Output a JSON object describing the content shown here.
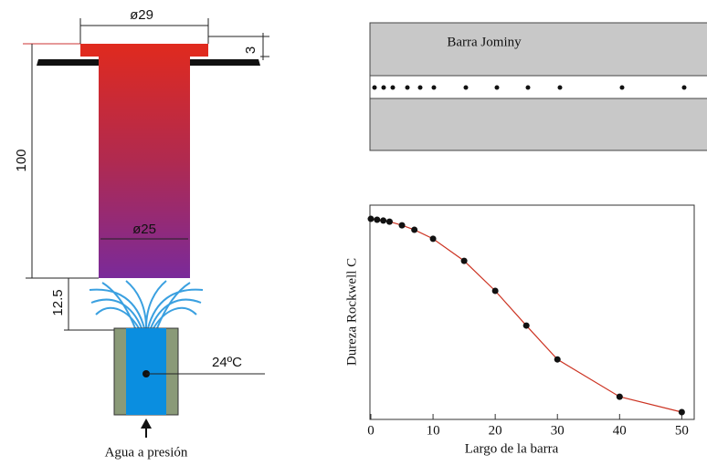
{
  "diagram": {
    "top_diameter": "ø29",
    "flange_height": "3",
    "length": "100",
    "bar_diameter": "ø25",
    "gap": "12.5",
    "water_temperature": "24ºC",
    "water_label": "Agua a presión",
    "bar_label": "Barra Jominy"
  },
  "chart_data": {
    "type": "line",
    "xlabel": "Largo de la barra",
    "ylabel": "Dureza Rockwell C",
    "x": [
      0,
      1,
      2,
      3,
      5,
      7,
      10,
      15,
      20,
      25,
      30,
      40,
      50
    ],
    "values": [
      93.6,
      93.2,
      92.8,
      92.3,
      90.6,
      88.5,
      84.3,
      74,
      60,
      43.8,
      28,
      10.6,
      3.4
    ],
    "color": "#cc3322",
    "xlim": [
      0,
      52
    ],
    "xticks": [
      0,
      10,
      20,
      30,
      40,
      50
    ],
    "ylim": [
      0,
      100
    ]
  }
}
